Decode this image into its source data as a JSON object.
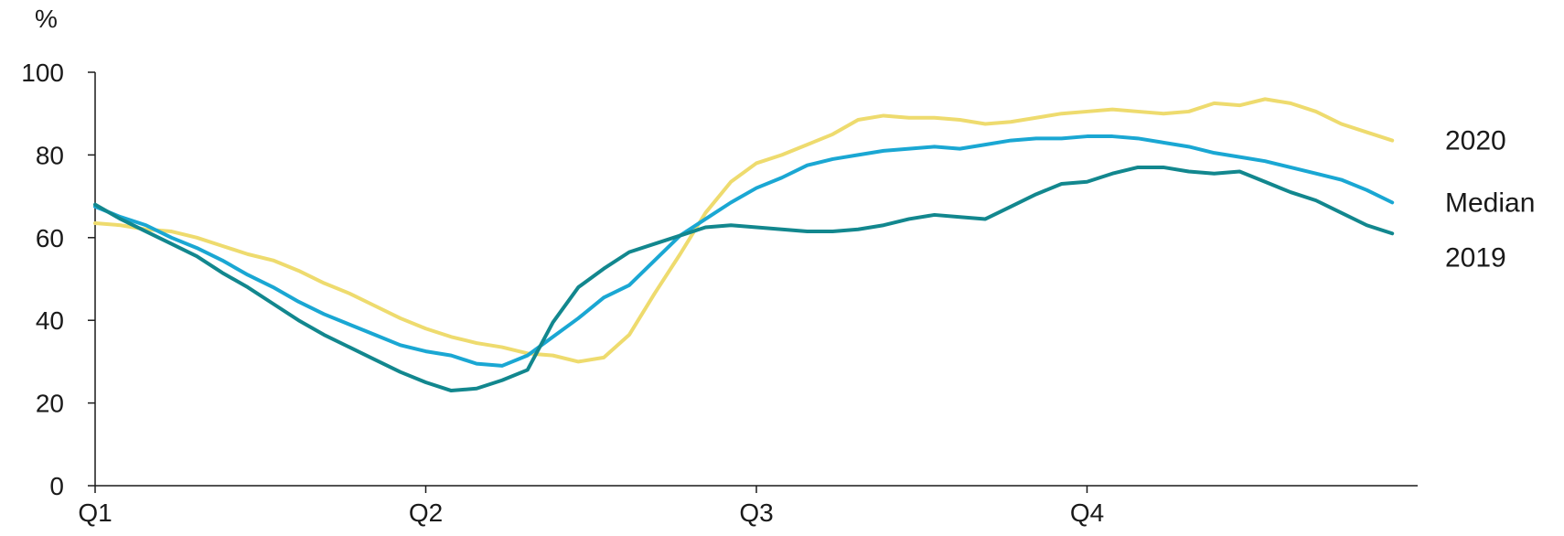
{
  "chart_data": {
    "type": "line",
    "unit_label": "%",
    "ylim": [
      0,
      100
    ],
    "y_ticks": [
      0,
      20,
      40,
      60,
      80,
      100
    ],
    "x_range": [
      0,
      52
    ],
    "x_ticks": [
      {
        "x": 0,
        "label": "Q1"
      },
      {
        "x": 13,
        "label": "Q2"
      },
      {
        "x": 26,
        "label": "Q3"
      },
      {
        "x": 39,
        "label": "Q4"
      }
    ],
    "grid": false,
    "legend": "direct labels at right end of lines",
    "series": [
      {
        "name": "2020",
        "color": "#EEDB6E",
        "x": [
          0,
          1,
          2,
          3,
          4,
          5,
          6,
          7,
          8,
          9,
          10,
          11,
          12,
          13,
          14,
          15,
          16,
          17,
          18,
          19,
          20,
          21,
          22,
          23,
          24,
          25,
          26,
          27,
          28,
          29,
          30,
          31,
          32,
          33,
          34,
          35,
          36,
          37,
          38,
          39,
          40,
          41,
          42,
          43,
          44,
          45,
          46,
          47,
          48,
          49,
          50,
          51
        ],
        "values": [
          63.5,
          63,
          62,
          61.5,
          60,
          58,
          56,
          54.5,
          52,
          49,
          46.5,
          43.5,
          40.5,
          38,
          36,
          34.5,
          33.5,
          32,
          31.5,
          30,
          31,
          36.5,
          46.5,
          56,
          66,
          73.5,
          78,
          80,
          82.5,
          85,
          88.5,
          89.5,
          89,
          89,
          88.5,
          87.5,
          88,
          89,
          90,
          90.5,
          91,
          90.5,
          90,
          90.5,
          92.5,
          92,
          93.5,
          92.5,
          90.5,
          87.5,
          85.5,
          83.5
        ]
      },
      {
        "name": "Median",
        "color": "#1AA7D3",
        "x": [
          0,
          1,
          2,
          3,
          4,
          5,
          6,
          7,
          8,
          9,
          10,
          11,
          12,
          13,
          14,
          15,
          16,
          17,
          18,
          19,
          20,
          21,
          22,
          23,
          24,
          25,
          26,
          27,
          28,
          29,
          30,
          31,
          32,
          33,
          34,
          35,
          36,
          37,
          38,
          39,
          40,
          41,
          42,
          43,
          44,
          45,
          46,
          47,
          48,
          49,
          50,
          51
        ],
        "values": [
          67.5,
          65,
          63,
          60,
          57.5,
          54.5,
          51,
          48,
          44.5,
          41.5,
          39,
          36.5,
          34,
          32.5,
          31.5,
          29.5,
          29,
          31.5,
          36,
          40.5,
          45.5,
          48.5,
          54.5,
          60.5,
          64.5,
          68.5,
          72,
          74.5,
          77.5,
          79,
          80,
          81,
          81.5,
          82,
          81.5,
          82.5,
          83.5,
          84,
          84,
          84.5,
          84.5,
          84,
          83,
          82,
          80.5,
          79.5,
          78.5,
          77,
          75.5,
          74,
          71.5,
          68.5
        ]
      },
      {
        "name": "2019",
        "color": "#12878E",
        "x": [
          0,
          1,
          2,
          3,
          4,
          5,
          6,
          7,
          8,
          9,
          10,
          11,
          12,
          13,
          14,
          15,
          16,
          17,
          18,
          19,
          20,
          21,
          22,
          23,
          24,
          25,
          26,
          27,
          28,
          29,
          30,
          31,
          32,
          33,
          34,
          35,
          36,
          37,
          38,
          39,
          40,
          41,
          42,
          43,
          44,
          45,
          46,
          47,
          48,
          49,
          50,
          51
        ],
        "values": [
          68,
          64.5,
          61.5,
          58.5,
          55.5,
          51.5,
          48,
          44,
          40,
          36.5,
          33.5,
          30.5,
          27.5,
          25,
          23,
          23.5,
          25.5,
          28,
          39.5,
          48,
          52.5,
          56.5,
          58.5,
          60.5,
          62.5,
          63,
          62.5,
          62,
          61.5,
          61.5,
          62,
          63,
          64.5,
          65.5,
          65,
          64.5,
          67.5,
          70.5,
          73,
          73.5,
          75.5,
          77,
          77,
          76,
          75.5,
          76,
          73.5,
          71,
          69,
          66,
          63,
          61
        ]
      }
    ]
  }
}
